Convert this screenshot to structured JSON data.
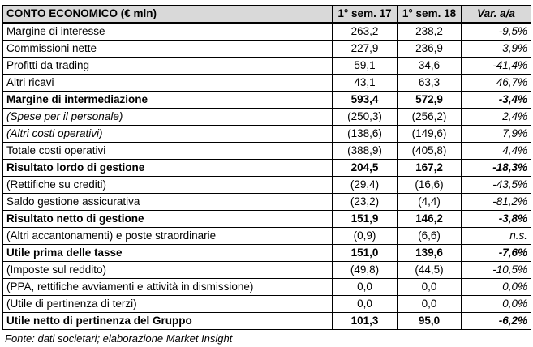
{
  "table": {
    "headers": [
      "CONTO ECONOMICO (€ mln)",
      "1° sem. 17",
      "1° sem. 18",
      "Var. a/a"
    ],
    "rows": [
      {
        "label": "Margine di interesse",
        "y1": "263,2",
        "y2": "238,2",
        "var": "-9,5%",
        "style": "normal"
      },
      {
        "label": "Commissioni nette",
        "y1": "227,9",
        "y2": "236,9",
        "var": "3,9%",
        "style": "normal"
      },
      {
        "label": "Profitti da trading",
        "y1": "59,1",
        "y2": "34,6",
        "var": "-41,4%",
        "style": "normal"
      },
      {
        "label": "Altri ricavi",
        "y1": "43,1",
        "y2": "63,3",
        "var": "46,7%",
        "style": "normal"
      },
      {
        "label": "Margine di intermediazione",
        "y1": "593,4",
        "y2": "572,9",
        "var": "-3,4%",
        "style": "bold"
      },
      {
        "label": "(Spese per il personale)",
        "y1": "(250,3)",
        "y2": "(256,2)",
        "var": "2,4%",
        "style": "italic"
      },
      {
        "label": "(Altri costi operativi)",
        "y1": "(138,6)",
        "y2": "(149,6)",
        "var": "7,9%",
        "style": "italic"
      },
      {
        "label": "Totale costi operativi",
        "y1": "(388,9)",
        "y2": "(405,8)",
        "var": "4,4%",
        "style": "normal"
      },
      {
        "label": "Risultato lordo di gestione",
        "y1": "204,5",
        "y2": "167,2",
        "var": "-18,3%",
        "style": "bold"
      },
      {
        "label": "(Rettifiche su crediti)",
        "y1": "(29,4)",
        "y2": "(16,6)",
        "var": "-43,5%",
        "style": "normal"
      },
      {
        "label": "Saldo gestione assicurativa",
        "y1": "(23,2)",
        "y2": "(4,4)",
        "var": "-81,2%",
        "style": "normal"
      },
      {
        "label": "Risultato netto di gestione",
        "y1": "151,9",
        "y2": "146,2",
        "var": "-3,8%",
        "style": "bold"
      },
      {
        "label": "(Altri accantonamenti) e poste straordinarie",
        "y1": "(0,9)",
        "y2": "(6,6)",
        "var": "n.s.",
        "style": "normal"
      },
      {
        "label": "Utile prima delle tasse",
        "y1": "151,0",
        "y2": "139,6",
        "var": "-7,6%",
        "style": "bold"
      },
      {
        "label": "(Imposte sul reddito)",
        "y1": "(49,8)",
        "y2": "(44,5)",
        "var": "-10,5%",
        "style": "normal"
      },
      {
        "label": "(PPA, rettifiche avviamenti e attività in dismissione)",
        "y1": "0,0",
        "y2": "0,0",
        "var": "0,0%",
        "style": "normal"
      },
      {
        "label": "(Utile di pertinenza di terzi)",
        "y1": "0,0",
        "y2": "0,0",
        "var": "0,0%",
        "style": "normal"
      },
      {
        "label": "Utile netto di pertinenza del Gruppo",
        "y1": "101,3",
        "y2": "95,0",
        "var": "-6,2%",
        "style": "bold"
      }
    ]
  },
  "source_note": "Fonte: dati societari; elaborazione Market Insight"
}
